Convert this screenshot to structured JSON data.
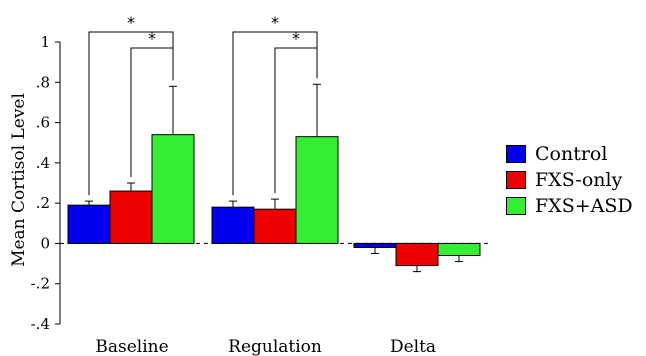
{
  "chart_data": {
    "type": "bar",
    "ylabel": "Mean Cortisol Level",
    "xlabel": "",
    "ylim": [
      -0.4,
      1.0
    ],
    "yticks": [
      -0.4,
      -0.2,
      0,
      0.2,
      0.4,
      0.6,
      0.8,
      1.0
    ],
    "ytick_labels": [
      "-.4",
      "-.2",
      "0",
      ".2",
      ".4",
      ".6",
      ".8",
      "1"
    ],
    "categories": [
      "Baseline",
      "Regulation",
      "Delta"
    ],
    "series": [
      {
        "name": "Control",
        "color": "#0000ee",
        "values": [
          0.19,
          0.18,
          -0.02
        ],
        "errors": [
          0.02,
          0.03,
          0.03
        ]
      },
      {
        "name": "FXS-only",
        "color": "#ee0000",
        "values": [
          0.26,
          0.17,
          -0.11
        ],
        "errors": [
          0.04,
          0.05,
          0.03
        ]
      },
      {
        "name": "FXS+ASD",
        "color": "#33ee33",
        "values": [
          0.54,
          0.53,
          -0.06
        ],
        "errors": [
          0.24,
          0.26,
          0.03
        ]
      }
    ],
    "significance": [
      {
        "group": "Baseline",
        "from": "Control",
        "to": "FXS+ASD",
        "label": "*"
      },
      {
        "group": "Baseline",
        "from": "FXS-only",
        "to": "FXS+ASD",
        "label": "*"
      },
      {
        "group": "Regulation",
        "from": "Control",
        "to": "FXS+ASD",
        "label": "*"
      },
      {
        "group": "Regulation",
        "from": "FXS-only",
        "to": "FXS+ASD",
        "label": "*"
      }
    ],
    "legend_position": "right",
    "grid": false
  }
}
